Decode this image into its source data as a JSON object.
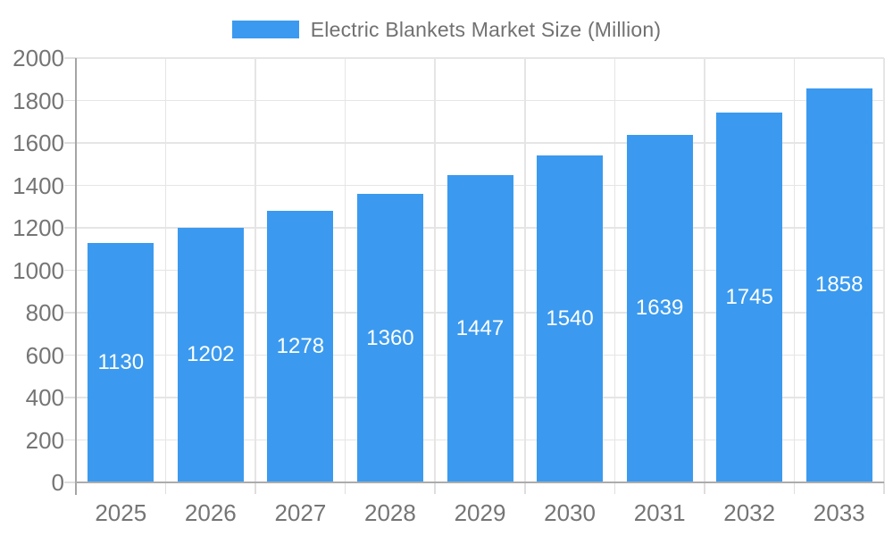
{
  "chart_data": {
    "type": "bar",
    "title": "Electric Blankets Market Size (Million)",
    "categories": [
      "2025",
      "2026",
      "2027",
      "2028",
      "2029",
      "2030",
      "2031",
      "2032",
      "2033"
    ],
    "values": [
      1130,
      1202,
      1278,
      1360,
      1447,
      1540,
      1639,
      1745,
      1858
    ],
    "xlabel": "",
    "ylabel": "",
    "ylim": [
      0,
      2000
    ],
    "ytick_step": 200,
    "grid": true,
    "legend_position": "top-center",
    "value_labels": "inside-middle"
  },
  "colors": {
    "bar": "#3B9AEF",
    "bar_label": "#ffffff",
    "axis_text": "#757575",
    "legend_text": "#717171",
    "gridline": "#e5e5e5",
    "tick": "#dedede",
    "axis_line": "#a5a5a5",
    "baseline": "#ababab",
    "background": "#ffffff"
  }
}
